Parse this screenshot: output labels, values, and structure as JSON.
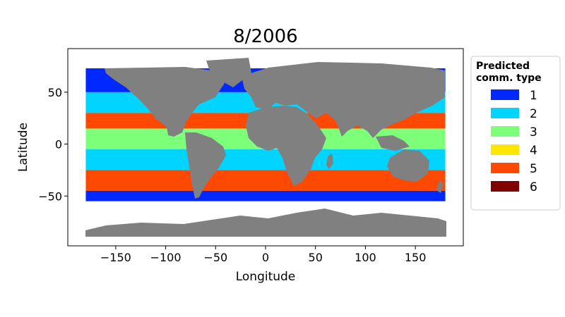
{
  "title": "8/2006",
  "xlabel": "Longitude",
  "ylabel": "Latitude",
  "x_ticks": [
    -150,
    -100,
    -50,
    0,
    50,
    100,
    150
  ],
  "y_ticks": [
    50,
    0,
    -50
  ],
  "xlim": [
    -198,
    198
  ],
  "ylim": [
    -98,
    92
  ],
  "land_color": "#808080",
  "legend": {
    "title_line1": "Predicted",
    "title_line2": "comm. type",
    "placement": "right-outside",
    "items": [
      {
        "label": "1",
        "color": "#0028ff"
      },
      {
        "label": "2",
        "color": "#00d4ff"
      },
      {
        "label": "3",
        "color": "#7dff7a"
      },
      {
        "label": "4",
        "color": "#ffe600"
      },
      {
        "label": "5",
        "color": "#ff4800"
      },
      {
        "label": "6",
        "color": "#800000"
      }
    ]
  },
  "chart_data": {
    "type": "scatter",
    "title": "8/2006",
    "xlabel": "Longitude",
    "ylabel": "Latitude",
    "xlim": [
      -198,
      198
    ],
    "ylim": [
      -98,
      92
    ],
    "zones": [
      {
        "name": "1",
        "color": "#0028ff",
        "lat_range": [
          50,
          73
        ]
      },
      {
        "name": "2",
        "color": "#00d4ff",
        "lat_range": [
          30,
          50
        ]
      },
      {
        "name": "5",
        "color": "#ff4800",
        "lat_range": [
          15,
          30
        ]
      },
      {
        "name": "3",
        "color": "#7dff7a",
        "lat_range": [
          -5,
          15
        ]
      },
      {
        "name": "2",
        "color": "#00d4ff",
        "lat_range": [
          -25,
          -5
        ]
      },
      {
        "name": "5",
        "color": "#ff4800",
        "lat_range": [
          -45,
          -25
        ]
      },
      {
        "name": "1",
        "color": "#0028ff",
        "lat_range": [
          -55,
          -45
        ]
      }
    ]
  }
}
